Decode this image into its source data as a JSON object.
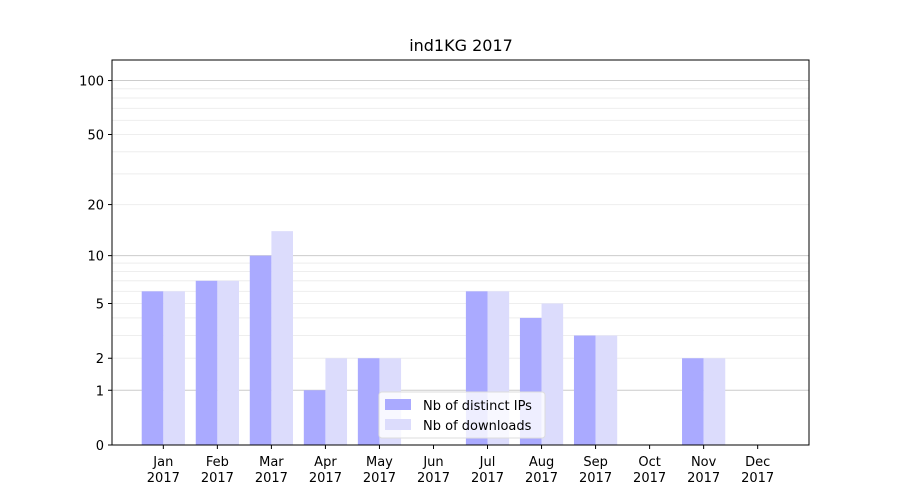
{
  "chart_data": {
    "type": "bar",
    "title": "ind1KG 2017",
    "categories": [
      "Jan\n2017",
      "Feb\n2017",
      "Mar\n2017",
      "Apr\n2017",
      "May\n2017",
      "Jun\n2017",
      "Jul\n2017",
      "Aug\n2017",
      "Sep\n2017",
      "Oct\n2017",
      "Nov\n2017",
      "Dec\n2017"
    ],
    "series": [
      {
        "name": "Nb of distinct IPs",
        "color": "#aaaaff",
        "values": [
          6,
          7,
          10,
          1,
          2,
          0,
          6,
          4,
          3,
          0,
          2,
          0
        ]
      },
      {
        "name": "Nb of downloads",
        "color": "#dcdcfc",
        "values": [
          6,
          7,
          14,
          2,
          2,
          0,
          6,
          5,
          3,
          0,
          2,
          0
        ]
      }
    ],
    "yscale": "log1p",
    "yticks": [
      0,
      1,
      2,
      5,
      10,
      20,
      50,
      100
    ],
    "ylim": [
      0,
      130
    ],
    "grid": true,
    "legend_position": "lower center"
  }
}
